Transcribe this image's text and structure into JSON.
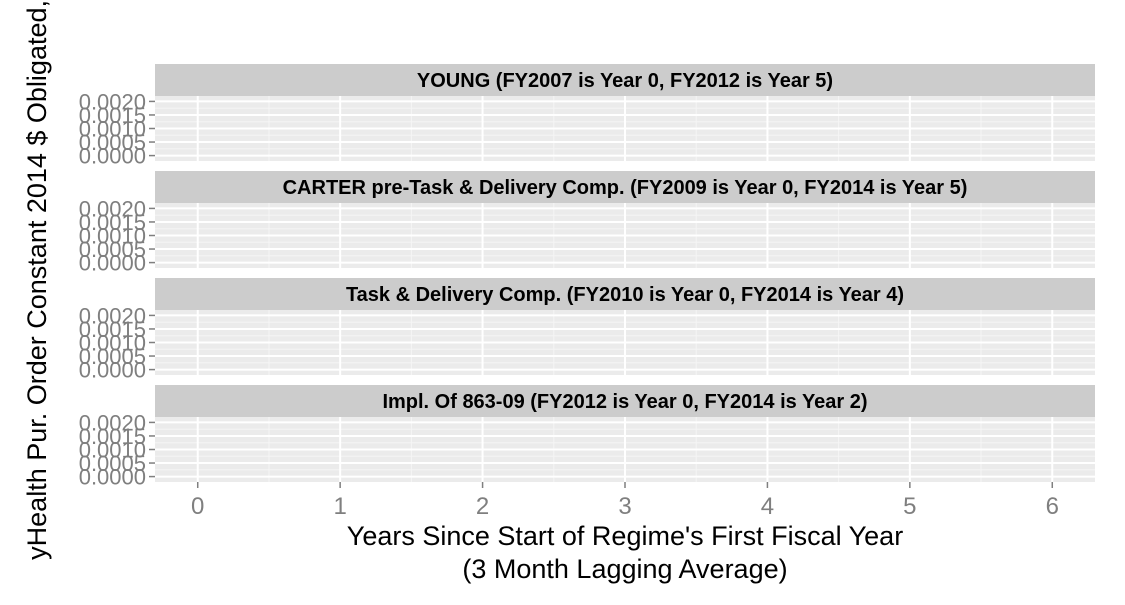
{
  "chart_data": {
    "type": "line",
    "facets": [
      {
        "strip": "YOUNG (FY2007 is Year 0, FY2012 is Year 5)"
      },
      {
        "strip": "CARTER pre-Task & Delivery Comp. (FY2009 is Year 0, FY2014 is Year 5)"
      },
      {
        "strip": "Task & Delivery Comp. (FY2010 is Year 0, FY2014 is Year 4)"
      },
      {
        "strip": "Impl. Of 863-09 (FY2012 is Year 0, FY2014 is Year 2)"
      }
    ],
    "x_ticks": [
      "0",
      "1",
      "2",
      "3",
      "4",
      "5",
      "6"
    ],
    "xlim": [
      -0.3,
      6.3
    ],
    "y_ticks": [
      "0.0000",
      "0.0005",
      "0.0010",
      "0.0015",
      "0.0020"
    ],
    "ylim": [
      -0.0002,
      0.0022
    ],
    "xlabel_line1": "Years Since Start of Regime's First Fiscal Year",
    "xlabel_line2": "(3 Month Lagging Average)",
    "ylabel": "yHealth Pur. Order Constant 2014 $ Obligated,",
    "series": [],
    "grid": true,
    "colors": {
      "panel_bg": "#ebebeb",
      "strip_bg": "#cccccc",
      "grid_major": "#ffffff",
      "grid_minor": "#f5f5f5",
      "tick": "#7f7f7f"
    }
  }
}
